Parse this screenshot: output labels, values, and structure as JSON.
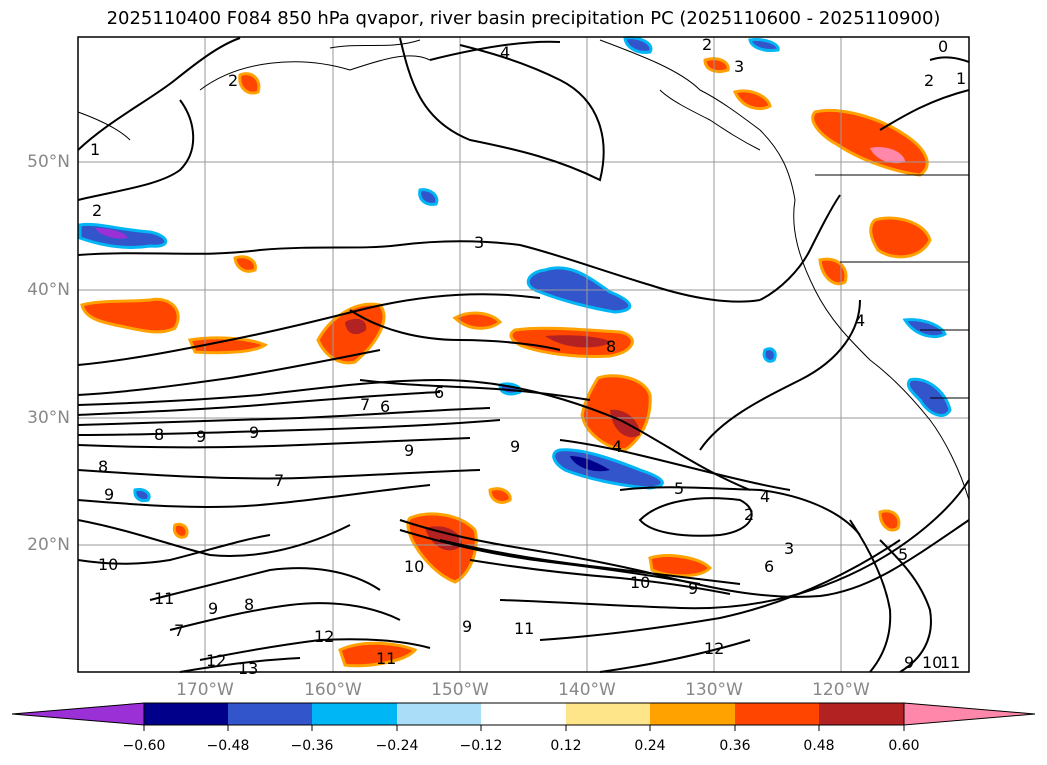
{
  "title": "2025110400 F084 850 hPa qvapor, river basin precipitation PC (2025110600 - 2025110900)",
  "lat_labels": [
    "50°N",
    "40°N",
    "30°N",
    "20°N"
  ],
  "lon_labels": [
    "170°W",
    "160°W",
    "150°W",
    "140°W",
    "130°W",
    "120°W"
  ],
  "colorbar": {
    "ticks": [
      "−0.60",
      "−0.48",
      "−0.36",
      "−0.24",
      "−0.12",
      "0.12",
      "0.24",
      "0.36",
      "0.48",
      "0.60"
    ],
    "colors": [
      "#9b30d6",
      "#00008b",
      "#3355cc",
      "#00b6f5",
      "#aaddf7",
      "#ffffff",
      "#ffe58a",
      "#ffa200",
      "#ff4500",
      "#b22222",
      "#ff88aa"
    ]
  },
  "contour_labels": [
    {
      "t": "2"
    },
    {
      "t": "4"
    },
    {
      "t": "2"
    },
    {
      "t": "3"
    },
    {
      "t": "0"
    },
    {
      "t": "1"
    },
    {
      "t": "2"
    },
    {
      "t": "1"
    },
    {
      "t": "2"
    },
    {
      "t": "3"
    },
    {
      "t": "4"
    },
    {
      "t": "8"
    },
    {
      "t": "6"
    },
    {
      "t": "7"
    },
    {
      "t": "6"
    },
    {
      "t": "8"
    },
    {
      "t": "9"
    },
    {
      "t": "9"
    },
    {
      "t": "9"
    },
    {
      "t": "9"
    },
    {
      "t": "8"
    },
    {
      "t": "9"
    },
    {
      "t": "7"
    },
    {
      "t": "10"
    },
    {
      "t": "11"
    },
    {
      "t": "9"
    },
    {
      "t": "8"
    },
    {
      "t": "7"
    },
    {
      "t": "12"
    },
    {
      "t": "12"
    },
    {
      "t": "13"
    },
    {
      "t": "10"
    },
    {
      "t": "11"
    },
    {
      "t": "9"
    },
    {
      "t": "11"
    },
    {
      "t": "10"
    },
    {
      "t": "9"
    },
    {
      "t": "12"
    },
    {
      "t": "5"
    },
    {
      "t": "4"
    },
    {
      "t": "2"
    },
    {
      "t": "3"
    },
    {
      "t": "6"
    },
    {
      "t": "5"
    },
    {
      "t": "4"
    },
    {
      "t": "9"
    },
    {
      "t": "10"
    },
    {
      "t": "11"
    }
  ]
}
